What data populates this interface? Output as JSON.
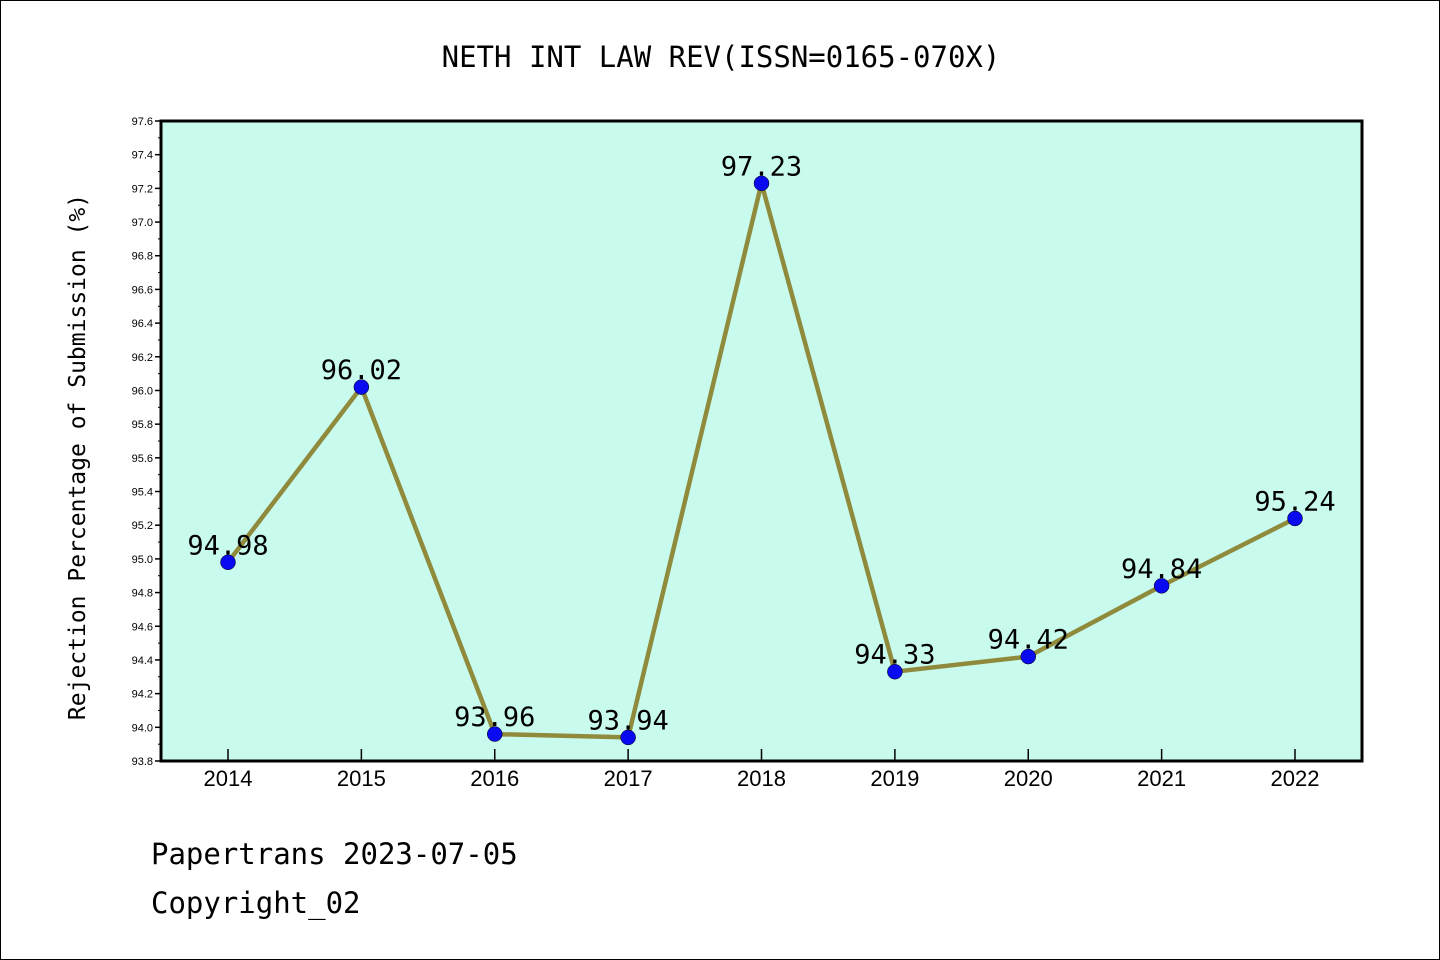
{
  "chart_data": {
    "type": "line",
    "title": "NETH INT LAW REV(ISSN=0165-070X)",
    "ylabel": "Rejection Percentage of Submission (%)",
    "xlabel": "",
    "categories": [
      "2014",
      "2015",
      "2016",
      "2017",
      "2018",
      "2019",
      "2020",
      "2021",
      "2022"
    ],
    "series": [
      {
        "values": [
          94.98,
          96.02,
          93.96,
          93.94,
          97.23,
          94.33,
          94.42,
          94.84,
          95.24
        ]
      }
    ],
    "data_labels": [
      "94.98",
      "96.02",
      "93.96",
      "93.94",
      "97.23",
      "94.33",
      "94.42",
      "94.84",
      "95.24"
    ],
    "ylim": [
      93.8,
      97.6
    ],
    "yticks": [
      "93.8",
      "94.0",
      "94.2",
      "94.4",
      "94.6",
      "94.8",
      "95.0",
      "95.2",
      "95.4",
      "95.6",
      "95.8",
      "96.0",
      "96.2",
      "96.4",
      "96.6",
      "96.8",
      "97.0",
      "97.2",
      "97.4",
      "97.6"
    ],
    "grid": false,
    "colors": {
      "plot_background": "#c8fbee",
      "line": "#8f8a3c",
      "marker": "#0a0af0"
    }
  },
  "footer": {
    "line1": "Papertrans 2023-07-05",
    "line2": "Copyright_02"
  }
}
